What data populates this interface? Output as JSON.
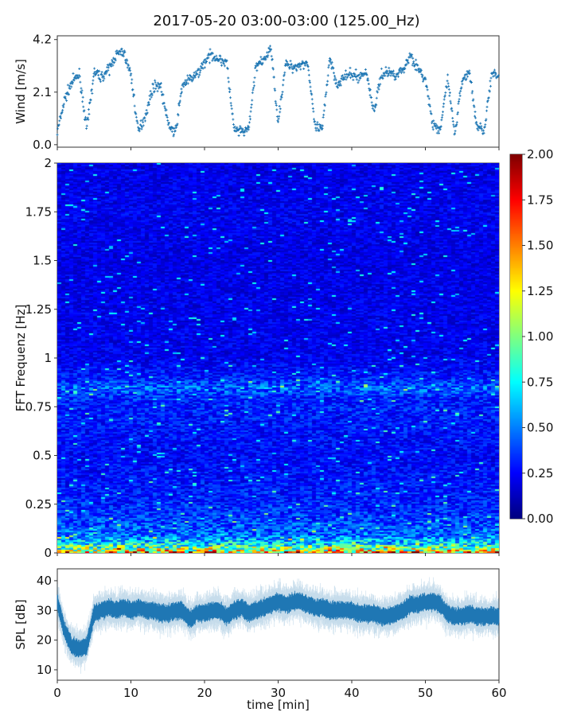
{
  "chart_data": [
    {
      "panel": "wind",
      "type": "scatter",
      "title": "2017-05-20 03:00-03:00 (125.00_Hz)",
      "ylabel": "Wind [m/s]",
      "xlim": [
        0,
        60
      ],
      "ylim": [
        -0.1,
        4.35
      ],
      "yticks": [
        "0.0",
        "2.1",
        "4.2"
      ],
      "marker": "+",
      "color": "#1f77b4",
      "x": [
        0,
        1,
        2,
        3,
        4,
        5,
        6,
        7,
        8,
        9,
        10,
        11,
        12,
        13,
        14,
        15,
        16,
        17,
        18,
        19,
        20,
        21,
        22,
        23,
        24,
        25,
        26,
        27,
        28,
        29,
        30,
        31,
        32,
        33,
        34,
        35,
        36,
        37,
        38,
        39,
        40,
        41,
        42,
        43,
        44,
        45,
        46,
        47,
        48,
        49,
        50,
        51,
        52,
        53,
        54,
        55,
        56,
        57,
        58,
        59,
        60
      ],
      "y": [
        0.5,
        1.8,
        2.5,
        2.8,
        0.6,
        2.9,
        2.7,
        3.0,
        3.6,
        3.7,
        2.8,
        0.5,
        1.2,
        2.3,
        2.4,
        0.9,
        0.4,
        2.4,
        2.6,
        2.8,
        3.3,
        3.6,
        3.4,
        3.3,
        0.6,
        0.5,
        0.6,
        3.2,
        3.3,
        3.9,
        0.9,
        3.2,
        3.1,
        3.2,
        3.3,
        0.7,
        0.6,
        3.5,
        2.4,
        2.7,
        2.8,
        2.7,
        2.9,
        1.3,
        2.8,
        2.9,
        2.8,
        3.0,
        3.6,
        3.0,
        2.6,
        0.8,
        0.5,
        2.7,
        0.4,
        2.6,
        2.9,
        0.7,
        0.6,
        2.8,
        2.7
      ]
    },
    {
      "panel": "spectrogram",
      "type": "heatmap",
      "ylabel": "FFT Frequenz [Hz]",
      "xlim": [
        0,
        60
      ],
      "ylim": [
        0,
        2
      ],
      "yticks": [
        "0",
        "0.25",
        "0.5",
        "0.75",
        "1",
        "1.25",
        "1.5",
        "1.75",
        "2"
      ],
      "colormap": "jet",
      "clim": [
        0,
        2
      ],
      "colorbar_ticks": [
        "0.00",
        "0.25",
        "0.50",
        "0.75",
        "1.00",
        "1.25",
        "1.50",
        "1.75",
        "2.00"
      ],
      "frequency_profile": {
        "freq": [
          0,
          0.02,
          0.05,
          0.1,
          0.2,
          0.3,
          0.5,
          0.8,
          0.85,
          0.9,
          1.0,
          1.5,
          1.75,
          2.0
        ],
        "mean_value": [
          1.6,
          1.1,
          0.7,
          0.45,
          0.35,
          0.3,
          0.25,
          0.32,
          0.45,
          0.3,
          0.22,
          0.2,
          0.22,
          0.2
        ]
      }
    },
    {
      "panel": "spl",
      "type": "line",
      "ylabel": "SPL [dB]",
      "xlabel": "time [min]",
      "xlim": [
        0,
        60
      ],
      "ylim": [
        6.5,
        44
      ],
      "xticks": [
        "0",
        "10",
        "20",
        "30",
        "40",
        "50",
        "60"
      ],
      "yticks": [
        "10",
        "20",
        "30",
        "40"
      ],
      "color": "#1f77b4",
      "x": [
        0,
        1,
        2,
        3,
        4,
        5,
        6,
        7,
        8,
        9,
        10,
        11,
        12,
        13,
        14,
        15,
        16,
        17,
        18,
        19,
        20,
        21,
        22,
        23,
        24,
        25,
        26,
        27,
        28,
        29,
        30,
        31,
        32,
        33,
        34,
        35,
        36,
        37,
        38,
        39,
        40,
        41,
        42,
        43,
        44,
        45,
        46,
        47,
        48,
        49,
        50,
        51,
        52,
        53,
        54,
        55,
        56,
        57,
        58,
        59,
        60
      ],
      "y": [
        33,
        23,
        18,
        17,
        18,
        29,
        30,
        31,
        30,
        31,
        30,
        31,
        30,
        30,
        29,
        29,
        30,
        30,
        27,
        29,
        29,
        30,
        30,
        28,
        30,
        31,
        29,
        30,
        31,
        32,
        33,
        32,
        33,
        33,
        32,
        31,
        31,
        30,
        30,
        30,
        30,
        29,
        29,
        29,
        28,
        28,
        29,
        30,
        32,
        32,
        33,
        33,
        32,
        29,
        28,
        28,
        29,
        28,
        28,
        28,
        28
      ]
    }
  ]
}
